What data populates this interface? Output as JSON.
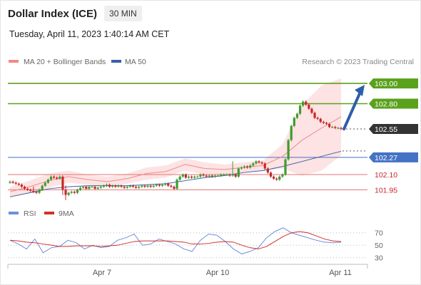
{
  "header": {
    "title": "Dollar Index (ICE)",
    "interval": "30 MIN",
    "timestamp": "Tuesday, April 11, 2023 1:40:14 AM CET",
    "credit": "Research © 2023 Trading Central"
  },
  "legend": {
    "ma20_label": "MA 20 + Bollinger Bands",
    "ma50_label": "MA 50",
    "rsi_label": "RSI",
    "rsi_ma_label": "9MA"
  },
  "colors": {
    "ma20": "#f08a8a",
    "ma50": "#3a5fa8",
    "bollinger_fill": "#fde0e0",
    "candle_up": "#3f9b2f",
    "candle_down": "#c62828",
    "resistance": "#5aa11c",
    "pivot": "#4472c4",
    "support": "#e57373",
    "arrow": "#2e5ea8",
    "rsi": "#6f8fd8",
    "rsi_ma": "#d32f2f"
  },
  "chart_data": [
    {
      "type": "candlestick",
      "title": "Dollar Index (ICE)",
      "ylim": [
        101.84,
        103.12
      ],
      "x_ticks": [
        "Apr 7",
        "Apr 10",
        "Apr 11"
      ],
      "levels": [
        {
          "name": "resistance 2",
          "value": 103.0,
          "label": "103.00",
          "style": "resistance"
        },
        {
          "name": "resistance 1",
          "value": 102.8,
          "label": "102.80",
          "style": "resistance"
        },
        {
          "name": "last",
          "value": 102.55,
          "label": "102.55",
          "style": "last"
        },
        {
          "name": "pivot",
          "value": 102.27,
          "label": "102.27",
          "style": "pivot"
        },
        {
          "name": "support 1",
          "value": 102.1,
          "label": "102.10",
          "style": "support"
        },
        {
          "name": "support 2",
          "value": 101.95,
          "label": "101.95",
          "style": "support"
        }
      ],
      "close": [
        102.03,
        102.02,
        102.01,
        102.0,
        101.98,
        101.96,
        101.95,
        101.94,
        101.93,
        101.92,
        101.95,
        101.99,
        102.02,
        102.05,
        102.08,
        102.07,
        102.06,
        102.08,
        101.95,
        101.9,
        101.92,
        101.93,
        101.92,
        101.95,
        101.97,
        101.98,
        101.96,
        101.98,
        101.98,
        101.96,
        101.97,
        101.98,
        101.99,
        102.0,
        101.98,
        101.99,
        101.98,
        101.99,
        101.98,
        101.97,
        101.98,
        101.99,
        101.98,
        101.97,
        101.98,
        101.99,
        101.98,
        101.99,
        101.98,
        101.99,
        102.0,
        101.99,
        102.0,
        102.01,
        101.99,
        101.98,
        101.96,
        102.05,
        102.08,
        102.1,
        102.07,
        102.08,
        102.07,
        102.08,
        102.08,
        102.1,
        102.09,
        102.08,
        102.09,
        102.08,
        102.09,
        102.09,
        102.1,
        102.1,
        102.1,
        102.09,
        102.1,
        102.08,
        102.16,
        102.17,
        102.18,
        102.17,
        102.19,
        102.21,
        102.23,
        102.22,
        102.21,
        102.16,
        102.12,
        102.08,
        102.06,
        102.05,
        102.08,
        102.1,
        102.25,
        102.44,
        102.58,
        102.66,
        102.7,
        102.78,
        102.82,
        102.79,
        102.75,
        102.71,
        102.66,
        102.65,
        102.62,
        102.61,
        102.6,
        102.57,
        102.57,
        102.56,
        102.56,
        102.55
      ],
      "series": [
        {
          "name": "MA 20",
          "values": [
            101.93,
            101.98,
            102.04,
            102.08,
            102.05,
            102.03,
            102.06,
            102.11,
            102.13,
            102.2,
            102.16,
            102.15,
            102.17,
            102.19,
            102.28,
            102.44,
            102.56,
            102.67
          ]
        },
        {
          "name": "MA 50",
          "values": [
            101.88,
            101.92,
            101.96,
            101.98,
            101.99,
            101.99,
            101.99,
            102.0,
            102.01,
            102.04,
            102.07,
            102.09,
            102.12,
            102.14,
            102.18,
            102.23,
            102.28,
            102.33
          ]
        }
      ]
    },
    {
      "type": "line",
      "title": "RSI",
      "ylim": [
        25,
        80
      ],
      "y_ticks": [
        30,
        50,
        70
      ],
      "series": [
        {
          "name": "RSI",
          "values": [
            58,
            52,
            44,
            60,
            38,
            46,
            48,
            58,
            54,
            44,
            50,
            46,
            48,
            58,
            62,
            68,
            50,
            52,
            60,
            56,
            52,
            44,
            40,
            58,
            68,
            66,
            56,
            44,
            36,
            40,
            46,
            62,
            72,
            78,
            70,
            66,
            62,
            58,
            55,
            54,
            55
          ]
        },
        {
          "name": "9MA",
          "values": [
            58,
            57,
            55,
            54,
            52,
            50,
            48,
            48,
            49,
            49,
            49,
            48,
            49,
            50,
            53,
            56,
            57,
            57,
            57,
            57,
            56,
            55,
            52,
            52,
            53,
            55,
            56,
            55,
            50,
            46,
            44,
            48,
            56,
            64,
            70,
            72,
            70,
            65,
            60,
            57,
            56
          ]
        }
      ]
    }
  ]
}
